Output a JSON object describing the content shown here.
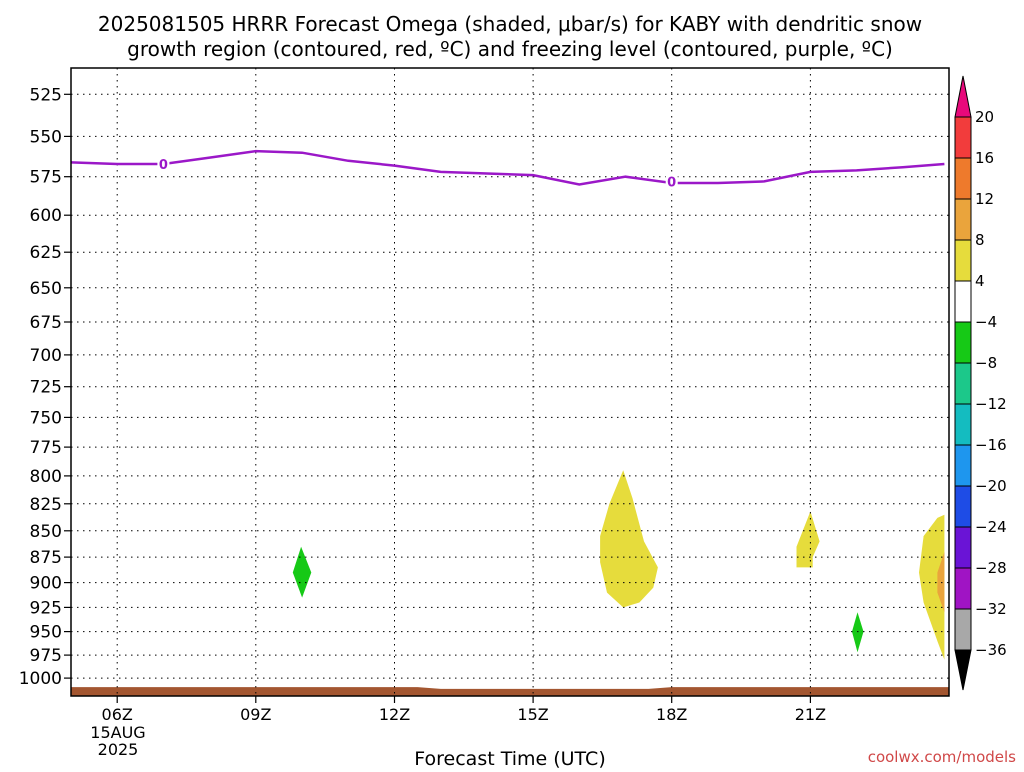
{
  "chart_data": {
    "type": "contour",
    "title_line1": "2025081505 HRRR Forecast Omega (shaded, μbar/s) for KABY with dendritic snow",
    "title_line2": "growth region (contoured, red, ºC) and freezing level (contoured, purple, ºC)",
    "xlabel": "Forecast Time (UTC)",
    "ylabel": "",
    "credit": "coolwx.com/models",
    "date_labels": [
      "15AUG",
      "2025"
    ],
    "x_axis": {
      "unit": "hours UTC on 15 Aug 2025",
      "range": [
        5,
        24
      ],
      "ticks": [
        {
          "hour": 6,
          "label": "06Z"
        },
        {
          "hour": 9,
          "label": "09Z"
        },
        {
          "hour": 12,
          "label": "12Z"
        },
        {
          "hour": 15,
          "label": "15Z"
        },
        {
          "hour": 18,
          "label": "18Z"
        },
        {
          "hour": 21,
          "label": "21Z"
        }
      ]
    },
    "y_axis": {
      "unit": "hPa",
      "scale": "log",
      "inverted": true,
      "range": [
        510,
        1020
      ],
      "ticks": [
        525,
        550,
        575,
        600,
        625,
        650,
        675,
        700,
        725,
        750,
        775,
        800,
        825,
        850,
        875,
        900,
        925,
        950,
        975,
        1000
      ]
    },
    "grid": true,
    "colorbar": {
      "unit": "μbar/s",
      "labels": [
        "20",
        "16",
        "12",
        "8",
        "4",
        "-4",
        "-8",
        "-12",
        "-16",
        "-20",
        "-24",
        "-28",
        "-32",
        "-36"
      ],
      "bins": [
        {
          "min": 20,
          "max": 24,
          "color": "#e8097b"
        },
        {
          "min": 16,
          "max": 20,
          "color": "#f23c3c"
        },
        {
          "min": 12,
          "max": 16,
          "color": "#ee7a2c"
        },
        {
          "min": 8,
          "max": 12,
          "color": "#eaa43c"
        },
        {
          "min": 4,
          "max": 8,
          "color": "#e6dc3c"
        },
        {
          "min": -4,
          "max": 4,
          "color": "#ffffff"
        },
        {
          "min": -8,
          "max": -4,
          "color": "#16c916"
        },
        {
          "min": -12,
          "max": -8,
          "color": "#1cc88a"
        },
        {
          "min": -16,
          "max": -12,
          "color": "#14bcc0"
        },
        {
          "min": -20,
          "max": -16,
          "color": "#1e96ee"
        },
        {
          "min": -24,
          "max": -20,
          "color": "#1e4ce6"
        },
        {
          "min": -28,
          "max": -24,
          "color": "#6a14d6"
        },
        {
          "min": -32,
          "max": -28,
          "color": "#a014c4"
        },
        {
          "min": -36,
          "max": -32,
          "color": "#a8a8a8"
        },
        {
          "min": -40,
          "max": -36,
          "color": "#000000"
        }
      ]
    },
    "freezing_level": {
      "color": "#9b18c8",
      "label": "0",
      "label_points": [
        {
          "hour": 7.0,
          "p": 567
        },
        {
          "hour": 18.0,
          "p": 578
        }
      ],
      "points": [
        {
          "hour": 5.0,
          "p": 566
        },
        {
          "hour": 6.0,
          "p": 567
        },
        {
          "hour": 7.0,
          "p": 567
        },
        {
          "hour": 8.0,
          "p": 563
        },
        {
          "hour": 9.0,
          "p": 559
        },
        {
          "hour": 10.0,
          "p": 560
        },
        {
          "hour": 11.0,
          "p": 565
        },
        {
          "hour": 12.0,
          "p": 568
        },
        {
          "hour": 13.0,
          "p": 572
        },
        {
          "hour": 14.0,
          "p": 573
        },
        {
          "hour": 15.0,
          "p": 574
        },
        {
          "hour": 16.0,
          "p": 580
        },
        {
          "hour": 17.0,
          "p": 575
        },
        {
          "hour": 18.0,
          "p": 579
        },
        {
          "hour": 19.0,
          "p": 579
        },
        {
          "hour": 20.0,
          "p": 578
        },
        {
          "hour": 21.0,
          "p": 572
        },
        {
          "hour": 22.0,
          "p": 571
        },
        {
          "hour": 23.0,
          "p": 569
        },
        {
          "hour": 23.9,
          "p": 567
        }
      ]
    },
    "omega_regions": [
      {
        "color": "#e6dc3c",
        "points": [
          {
            "hour": 16.95,
            "p": 795
          },
          {
            "hour": 17.15,
            "p": 820
          },
          {
            "hour": 17.4,
            "p": 860
          },
          {
            "hour": 17.7,
            "p": 885
          },
          {
            "hour": 17.6,
            "p": 905
          },
          {
            "hour": 17.3,
            "p": 920
          },
          {
            "hour": 16.95,
            "p": 925
          },
          {
            "hour": 16.6,
            "p": 910
          },
          {
            "hour": 16.45,
            "p": 880
          },
          {
            "hour": 16.45,
            "p": 855
          },
          {
            "hour": 16.65,
            "p": 825
          }
        ]
      },
      {
        "color": "#e6dc3c",
        "points": [
          {
            "hour": 21.0,
            "p": 832
          },
          {
            "hour": 21.2,
            "p": 860
          },
          {
            "hour": 21.05,
            "p": 875
          },
          {
            "hour": 21.05,
            "p": 885
          },
          {
            "hour": 20.7,
            "p": 885
          },
          {
            "hour": 20.7,
            "p": 865
          }
        ]
      },
      {
        "color": "#e6dc3c",
        "points": [
          {
            "hour": 23.9,
            "p": 835
          },
          {
            "hour": 23.9,
            "p": 980
          },
          {
            "hour": 23.75,
            "p": 960
          },
          {
            "hour": 23.45,
            "p": 920
          },
          {
            "hour": 23.35,
            "p": 890
          },
          {
            "hour": 23.45,
            "p": 855
          },
          {
            "hour": 23.75,
            "p": 838
          }
        ]
      },
      {
        "color": "#eaa43c",
        "points": [
          {
            "hour": 23.9,
            "p": 870
          },
          {
            "hour": 23.9,
            "p": 930
          },
          {
            "hour": 23.75,
            "p": 910
          },
          {
            "hour": 23.75,
            "p": 890
          }
        ]
      },
      {
        "color": "#16c916",
        "points": [
          {
            "hour": 9.98,
            "p": 865
          },
          {
            "hour": 10.2,
            "p": 890
          },
          {
            "hour": 10.0,
            "p": 915
          },
          {
            "hour": 9.8,
            "p": 890
          }
        ]
      },
      {
        "color": "#16c916",
        "points": [
          {
            "hour": 22.02,
            "p": 930
          },
          {
            "hour": 22.15,
            "p": 950
          },
          {
            "hour": 22.02,
            "p": 972
          },
          {
            "hour": 21.9,
            "p": 950
          }
        ]
      }
    ],
    "terrain_color": "#a35630",
    "terrain": [
      {
        "hour": 5.0,
        "p": 1010
      },
      {
        "hour": 12.5,
        "p": 1010
      },
      {
        "hour": 13.0,
        "p": 1012
      },
      {
        "hour": 17.5,
        "p": 1012
      },
      {
        "hour": 18.0,
        "p": 1010
      },
      {
        "hour": 24.0,
        "p": 1010
      }
    ]
  }
}
